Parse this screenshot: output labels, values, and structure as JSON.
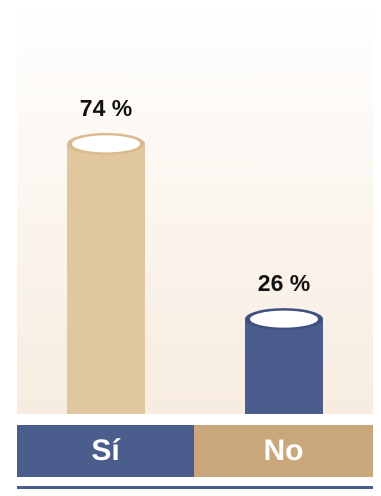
{
  "chart_data": {
    "type": "bar",
    "categories": [
      "Sí",
      "No"
    ],
    "values": [
      74,
      26
    ],
    "data_labels": [
      "74 %",
      "26 %"
    ],
    "ylim": [
      0,
      100
    ],
    "grid": false,
    "legend_position": "bottom",
    "colors": {
      "si_bar": "#e0c7a0",
      "si_bar_top": "#d9bb8f",
      "no_bar": "#4b5d8c",
      "no_bar_top": "#3f5080",
      "background_top": "#ffffff",
      "background_bottom": "#f7ecdf",
      "legend_si": "#4b5d8c",
      "legend_no": "#c9a77a",
      "bottom_rule": "#4b5d8c"
    }
  },
  "legend": {
    "si_label": "Sí",
    "no_label": "No"
  }
}
